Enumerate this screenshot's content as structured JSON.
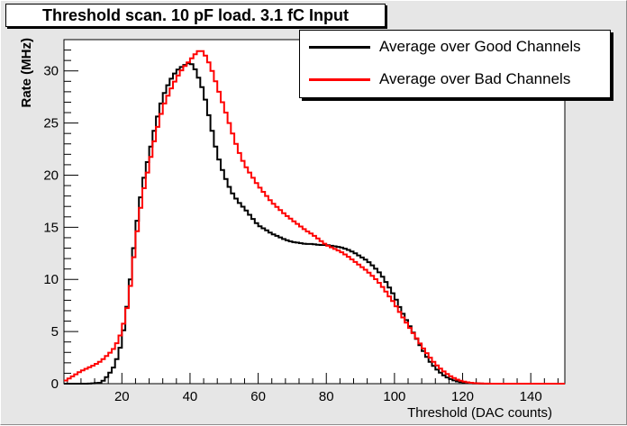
{
  "chart_data": {
    "type": "line",
    "title": "Threshold scan. 10 pF load. 3.1 fC Input",
    "xlabel": "Threshold (DAC counts)",
    "ylabel": "Rate (MHz)",
    "xlim": [
      3,
      150
    ],
    "ylim": [
      0,
      33
    ],
    "x_ticks": [
      "20",
      "40",
      "60",
      "80",
      "100",
      "120",
      "140"
    ],
    "y_ticks": [
      "0",
      "5",
      "10",
      "15",
      "20",
      "25",
      "30"
    ],
    "grid": false,
    "legend_position": "top-right",
    "series": [
      {
        "name": "Average over Good Channels",
        "color": "#000000",
        "x": [
          3,
          10,
          14,
          16,
          18,
          20,
          22,
          24,
          26,
          28,
          30,
          32,
          34,
          36,
          38,
          40,
          41,
          42,
          44,
          46,
          48,
          50,
          52,
          54,
          56,
          58,
          60,
          62,
          64,
          66,
          68,
          70,
          72,
          74,
          76,
          78,
          80,
          82,
          84,
          86,
          88,
          90,
          92,
          94,
          96,
          98,
          100,
          102,
          104,
          106,
          108,
          110,
          112,
          114,
          116,
          118,
          120,
          122,
          124,
          126,
          130,
          150
        ],
        "y": [
          0,
          0,
          0.1,
          0.8,
          1.8,
          4,
          8.5,
          14.5,
          19,
          22,
          25,
          27.5,
          29,
          30,
          30.5,
          30.8,
          30.5,
          29.8,
          28,
          25,
          22,
          20,
          18.5,
          17.5,
          16.8,
          16,
          15.2,
          14.8,
          14.4,
          14.1,
          13.8,
          13.6,
          13.5,
          13.4,
          13.4,
          13.3,
          13.3,
          13.2,
          13.1,
          12.9,
          12.6,
          12.2,
          11.8,
          11.2,
          10.5,
          9.5,
          8.4,
          7,
          5.8,
          4.6,
          3.4,
          2.3,
          1.5,
          0.9,
          0.5,
          0.25,
          0.12,
          0.05,
          0.02,
          0,
          0,
          0
        ]
      },
      {
        "name": "Average over Bad Channels",
        "color": "#ff0000",
        "x": [
          3,
          6,
          8,
          10,
          12,
          14,
          16,
          18,
          20,
          22,
          24,
          26,
          28,
          30,
          32,
          34,
          36,
          38,
          40,
          42,
          43,
          44,
          46,
          48,
          50,
          52,
          54,
          56,
          58,
          60,
          62,
          64,
          66,
          68,
          70,
          72,
          74,
          76,
          78,
          80,
          82,
          84,
          86,
          88,
          90,
          92,
          94,
          96,
          98,
          100,
          102,
          104,
          106,
          108,
          110,
          112,
          114,
          116,
          118,
          120,
          122,
          124,
          126,
          130,
          150
        ],
        "y": [
          0.2,
          0.8,
          1.2,
          1.5,
          1.8,
          2.2,
          2.8,
          3.5,
          5,
          8,
          13.5,
          18,
          21,
          24,
          26.5,
          28,
          29.3,
          30.3,
          31,
          31.8,
          32,
          31.8,
          30.5,
          28.5,
          26.5,
          24.5,
          22.5,
          21,
          20,
          19,
          18.2,
          17.4,
          16.8,
          16.2,
          15.7,
          15.2,
          14.7,
          14.3,
          13.8,
          13.3,
          13,
          12.7,
          12.3,
          11.8,
          11.3,
          10.8,
          10.2,
          9.5,
          8.6,
          7.7,
          6.6,
          5.6,
          4.6,
          3.6,
          2.7,
          1.9,
          1.3,
          0.8,
          0.45,
          0.22,
          0.1,
          0.04,
          0.01,
          0,
          0
        ]
      }
    ]
  }
}
